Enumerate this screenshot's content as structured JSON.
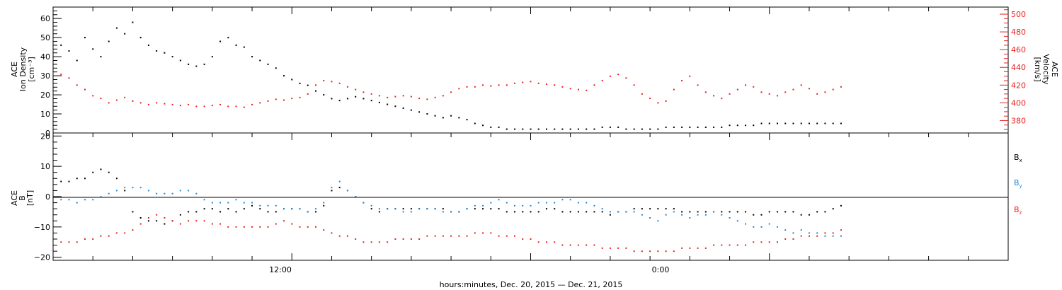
{
  "chart_data": [
    {
      "type": "scatter",
      "panel": "top",
      "left_axis_title": [
        "ACE",
        "Ion Density",
        "[cm⁻³]"
      ],
      "right_axis_title": [
        "ACE",
        "Velocity",
        "[km/s]"
      ],
      "left_ticks": [
        "0",
        "10",
        "20",
        "30",
        "40",
        "50",
        "60"
      ],
      "right_ticks": [
        "380",
        "400",
        "420",
        "440",
        "460",
        "480",
        "500"
      ],
      "left_ylim": [
        0,
        66
      ],
      "right_ylim": [
        366,
        508
      ],
      "x_range_hours": [
        0,
        48
      ],
      "series": [
        {
          "axis": "left",
          "color": "#000000",
          "x": [
            0.4,
            0.8,
            1.2,
            1.6,
            2.0,
            2.4,
            2.8,
            3.2,
            3.6,
            4.0,
            4.4,
            4.8,
            5.2,
            5.6,
            6.0,
            6.4,
            6.8,
            7.2,
            7.6,
            8.0,
            8.4,
            8.8,
            9.2,
            9.6,
            10.0,
            10.4,
            10.8,
            11.2,
            11.6,
            12.0,
            12.4,
            12.8,
            13.2,
            13.6,
            14.0,
            14.4,
            14.8,
            15.2,
            15.6,
            16.0,
            16.4,
            16.8,
            17.2,
            17.6,
            18.0,
            18.4,
            18.8,
            19.2,
            19.6,
            20.0,
            20.4,
            20.8,
            21.2,
            21.6,
            22.0,
            22.4,
            22.8,
            23.2,
            23.6,
            24.0,
            24.4,
            24.8,
            25.2,
            25.6,
            26.0,
            26.4,
            26.8,
            27.2,
            27.6,
            28.0,
            28.4,
            28.8,
            29.2,
            29.6,
            30.0,
            30.4,
            30.8,
            31.2,
            31.6,
            32.0,
            32.4,
            32.8,
            33.2,
            33.6,
            34.0,
            34.4,
            34.8,
            35.2,
            35.6,
            36.0,
            36.4,
            36.8,
            37.2,
            37.6,
            38.0,
            38.4,
            38.8,
            39.2,
            39.6
          ],
          "y": [
            46,
            43,
            38,
            50,
            44,
            40,
            48,
            55,
            52,
            58,
            50,
            46,
            43,
            42,
            40,
            38,
            36,
            35,
            36,
            40,
            48,
            50,
            46,
            45,
            40,
            38,
            36,
            34,
            30,
            28,
            26,
            25,
            22,
            20,
            18,
            17,
            18,
            19,
            18,
            17,
            16,
            15,
            14,
            13,
            12,
            11,
            10,
            9,
            8,
            9,
            8,
            7,
            5,
            4,
            3,
            3,
            2,
            2,
            2,
            2,
            2,
            2,
            2,
            2,
            2,
            2,
            2,
            2,
            3,
            3,
            3,
            2,
            2,
            2,
            2,
            2,
            3,
            3,
            3,
            3,
            3,
            3,
            3,
            3,
            4,
            4,
            4,
            4,
            5,
            5,
            5,
            5,
            5,
            5,
            5,
            5,
            5,
            5,
            5
          ]
        },
        {
          "axis": "right",
          "color": "#e82020",
          "x": [
            0.4,
            0.8,
            1.2,
            1.6,
            2.0,
            2.4,
            2.8,
            3.2,
            3.6,
            4.0,
            4.4,
            4.8,
            5.2,
            5.6,
            6.0,
            6.4,
            6.8,
            7.2,
            7.6,
            8.0,
            8.4,
            8.8,
            9.2,
            9.6,
            10.0,
            10.4,
            10.8,
            11.2,
            11.6,
            12.0,
            12.4,
            12.8,
            13.2,
            13.6,
            14.0,
            14.4,
            14.8,
            15.2,
            15.6,
            16.0,
            16.4,
            16.8,
            17.2,
            17.6,
            18.0,
            18.4,
            18.8,
            19.2,
            19.6,
            20.0,
            20.4,
            20.8,
            21.2,
            21.6,
            22.0,
            22.4,
            22.8,
            23.2,
            23.6,
            24.0,
            24.4,
            24.8,
            25.2,
            25.6,
            26.0,
            26.4,
            26.8,
            27.2,
            27.6,
            28.0,
            28.4,
            28.8,
            29.2,
            29.6,
            30.0,
            30.4,
            30.8,
            31.2,
            31.6,
            32.0,
            32.4,
            32.8,
            33.2,
            33.6,
            34.0,
            34.4,
            34.8,
            35.2,
            35.6,
            36.0,
            36.4,
            36.8,
            37.2,
            37.6,
            38.0,
            38.4,
            38.8,
            39.2,
            39.6
          ],
          "y": [
            432,
            428,
            420,
            415,
            408,
            405,
            400,
            403,
            406,
            402,
            400,
            398,
            400,
            399,
            398,
            397,
            398,
            396,
            396,
            397,
            398,
            396,
            396,
            395,
            398,
            400,
            402,
            404,
            403,
            405,
            406,
            410,
            420,
            425,
            424,
            422,
            418,
            415,
            412,
            410,
            408,
            406,
            407,
            408,
            407,
            405,
            404,
            406,
            408,
            412,
            416,
            418,
            418,
            420,
            419,
            420,
            420,
            422,
            423,
            424,
            422,
            421,
            420,
            418,
            416,
            415,
            414,
            420,
            425,
            430,
            432,
            428,
            420,
            410,
            405,
            400,
            402,
            415,
            425,
            430,
            420,
            412,
            408,
            405,
            410,
            415,
            420,
            418,
            412,
            410,
            408,
            412,
            415,
            420,
            416,
            410,
            412,
            415,
            418
          ]
        }
      ]
    },
    {
      "type": "scatter",
      "panel": "bottom",
      "left_axis_title": [
        "ACE",
        "B",
        "[nT]"
      ],
      "left_ticks": [
        "−20",
        "−10",
        "0",
        "10",
        "20"
      ],
      "ylim": [
        -21,
        21
      ],
      "x_range_hours": [
        0,
        48
      ],
      "series": [
        {
          "name": "Bx",
          "color": "#000000",
          "x": [
            0.4,
            0.8,
            1.2,
            1.6,
            2.0,
            2.4,
            2.8,
            3.2,
            3.6,
            4.0,
            4.4,
            4.8,
            5.2,
            5.6,
            6.0,
            6.4,
            6.8,
            7.2,
            7.6,
            8.0,
            8.4,
            8.8,
            9.2,
            9.6,
            10.0,
            10.4,
            10.8,
            11.2,
            11.6,
            12.0,
            12.4,
            12.8,
            13.2,
            13.6,
            14.0,
            14.4,
            14.8,
            15.2,
            15.6,
            16.0,
            16.4,
            16.8,
            17.2,
            17.6,
            18.0,
            18.4,
            18.8,
            19.2,
            19.6,
            20.0,
            20.4,
            20.8,
            21.2,
            21.6,
            22.0,
            22.4,
            22.8,
            23.2,
            23.6,
            24.0,
            24.4,
            24.8,
            25.2,
            25.6,
            26.0,
            26.4,
            26.8,
            27.2,
            27.6,
            28.0,
            28.4,
            28.8,
            29.2,
            29.6,
            30.0,
            30.4,
            30.8,
            31.2,
            31.6,
            32.0,
            32.4,
            32.8,
            33.2,
            33.6,
            34.0,
            34.4,
            34.8,
            35.2,
            35.6,
            36.0,
            36.4,
            36.8,
            37.2,
            37.6,
            38.0,
            38.4,
            38.8,
            39.2,
            39.6
          ],
          "y": [
            5,
            5,
            6,
            6,
            8,
            9,
            8,
            6,
            2,
            -5,
            -7,
            -8,
            -8,
            -9,
            -8,
            -6,
            -5,
            -5,
            -4,
            -4,
            -5,
            -4,
            -5,
            -4,
            -3,
            -4,
            -5,
            -5,
            -4,
            -4,
            -4,
            -5,
            -5,
            -3,
            2,
            3,
            2,
            0,
            -2,
            -4,
            -5,
            -4,
            -4,
            -4,
            -4,
            -4,
            -4,
            -4,
            -4,
            -5,
            -5,
            -4,
            -4,
            -4,
            -4,
            -4,
            -5,
            -5,
            -5,
            -5,
            -5,
            -4,
            -4,
            -5,
            -5,
            -5,
            -5,
            -5,
            -5,
            -6,
            -5,
            -5,
            -4,
            -4,
            -4,
            -4,
            -4,
            -4,
            -5,
            -5,
            -5,
            -5,
            -5,
            -5,
            -5,
            -5,
            -5,
            -6,
            -6,
            -5,
            -5,
            -5,
            -5,
            -6,
            -6,
            -5,
            -5,
            -4,
            -3
          ]
        },
        {
          "name": "By",
          "color": "#1f88d8",
          "x": [
            0.4,
            0.8,
            1.2,
            1.6,
            2.0,
            2.4,
            2.8,
            3.2,
            3.6,
            4.0,
            4.4,
            4.8,
            5.2,
            5.6,
            6.0,
            6.4,
            6.8,
            7.2,
            7.6,
            8.0,
            8.4,
            8.8,
            9.2,
            9.6,
            10.0,
            10.4,
            10.8,
            11.2,
            11.6,
            12.0,
            12.4,
            12.8,
            13.2,
            13.6,
            14.0,
            14.4,
            14.8,
            15.2,
            15.6,
            16.0,
            16.4,
            16.8,
            17.2,
            17.6,
            18.0,
            18.4,
            18.8,
            19.2,
            19.6,
            20.0,
            20.4,
            20.8,
            21.2,
            21.6,
            22.0,
            22.4,
            22.8,
            23.2,
            23.6,
            24.0,
            24.4,
            24.8,
            25.2,
            25.6,
            26.0,
            26.4,
            26.8,
            27.2,
            27.6,
            28.0,
            28.4,
            28.8,
            29.2,
            29.6,
            30.0,
            30.4,
            30.8,
            31.2,
            31.6,
            32.0,
            32.4,
            32.8,
            33.2,
            33.6,
            34.0,
            34.4,
            34.8,
            35.2,
            35.6,
            36.0,
            36.4,
            36.8,
            37.2,
            37.6,
            38.0,
            38.4,
            38.8,
            39.2,
            39.6
          ],
          "y": [
            -1,
            -1,
            -2,
            -1,
            -1,
            0,
            1,
            2,
            3,
            3,
            3,
            2,
            1,
            1,
            1,
            2,
            2,
            1,
            -1,
            -2,
            -2,
            -2,
            -1,
            -2,
            -2,
            -3,
            -3,
            -3,
            -4,
            -4,
            -4,
            -5,
            -4,
            -2,
            3,
            5,
            2,
            0,
            -2,
            -3,
            -4,
            -4,
            -4,
            -5,
            -5,
            -4,
            -4,
            -4,
            -5,
            -5,
            -5,
            -4,
            -3,
            -3,
            -2,
            -1,
            -2,
            -3,
            -3,
            -3,
            -2,
            -2,
            -2,
            -1,
            -1,
            -2,
            -2,
            -3,
            -4,
            -5,
            -5,
            -5,
            -5,
            -6,
            -7,
            -8,
            -6,
            -5,
            -6,
            -7,
            -6,
            -6,
            -5,
            -6,
            -7,
            -8,
            -9,
            -10,
            -10,
            -9,
            -10,
            -11,
            -12,
            -11,
            -12,
            -12,
            -13,
            -13,
            -13
          ]
        },
        {
          "name": "Bz",
          "color": "#e82020",
          "x": [
            0.4,
            0.8,
            1.2,
            1.6,
            2.0,
            2.4,
            2.8,
            3.2,
            3.6,
            4.0,
            4.4,
            4.8,
            5.2,
            5.6,
            6.0,
            6.4,
            6.8,
            7.2,
            7.6,
            8.0,
            8.4,
            8.8,
            9.2,
            9.6,
            10.0,
            10.4,
            10.8,
            11.2,
            11.6,
            12.0,
            12.4,
            12.8,
            13.2,
            13.6,
            14.0,
            14.4,
            14.8,
            15.2,
            15.6,
            16.0,
            16.4,
            16.8,
            17.2,
            17.6,
            18.0,
            18.4,
            18.8,
            19.2,
            19.6,
            20.0,
            20.4,
            20.8,
            21.2,
            21.6,
            22.0,
            22.4,
            22.8,
            23.2,
            23.6,
            24.0,
            24.4,
            24.8,
            25.2,
            25.6,
            26.0,
            26.4,
            26.8,
            27.2,
            27.6,
            28.0,
            28.4,
            28.8,
            29.2,
            29.6,
            30.0,
            30.4,
            30.8,
            31.2,
            31.6,
            32.0,
            32.4,
            32.8,
            33.2,
            33.6,
            34.0,
            34.4,
            34.8,
            35.2,
            35.6,
            36.0,
            36.4,
            36.8,
            37.2,
            37.6,
            38.0,
            38.4,
            38.8,
            39.2,
            39.6
          ],
          "y": [
            -15,
            -15,
            -15,
            -14,
            -14,
            -13,
            -13,
            -12,
            -12,
            -11,
            -9,
            -7,
            -6,
            -7,
            -8,
            -9,
            -8,
            -8,
            -8,
            -9,
            -9,
            -10,
            -10,
            -10,
            -10,
            -10,
            -10,
            -9,
            -8,
            -9,
            -10,
            -10,
            -10,
            -11,
            -12,
            -13,
            -13,
            -14,
            -15,
            -15,
            -15,
            -15,
            -14,
            -14,
            -14,
            -14,
            -13,
            -13,
            -13,
            -13,
            -13,
            -13,
            -12,
            -12,
            -12,
            -13,
            -13,
            -13,
            -14,
            -14,
            -15,
            -15,
            -15,
            -16,
            -16,
            -16,
            -16,
            -16,
            -17,
            -17,
            -17,
            -17,
            -18,
            -18,
            -18,
            -18,
            -18,
            -18,
            -17,
            -17,
            -17,
            -17,
            -16,
            -16,
            -16,
            -16,
            -16,
            -15,
            -15,
            -15,
            -15,
            -14,
            -14,
            -13,
            -13,
            -13,
            -12,
            -12,
            -11
          ]
        }
      ],
      "legend": [
        "B",
        "B",
        "B"
      ],
      "legend_subscripts": [
        "x",
        "y",
        "z"
      ]
    }
  ],
  "x_ticks": [
    "12:00",
    "0:00"
  ],
  "x_title": "hours:minutes, Dec. 20, 2015 — Dec. 21, 2015",
  "colors": {
    "black": "#000000",
    "red": "#e82020",
    "blue": "#1f88d8"
  }
}
